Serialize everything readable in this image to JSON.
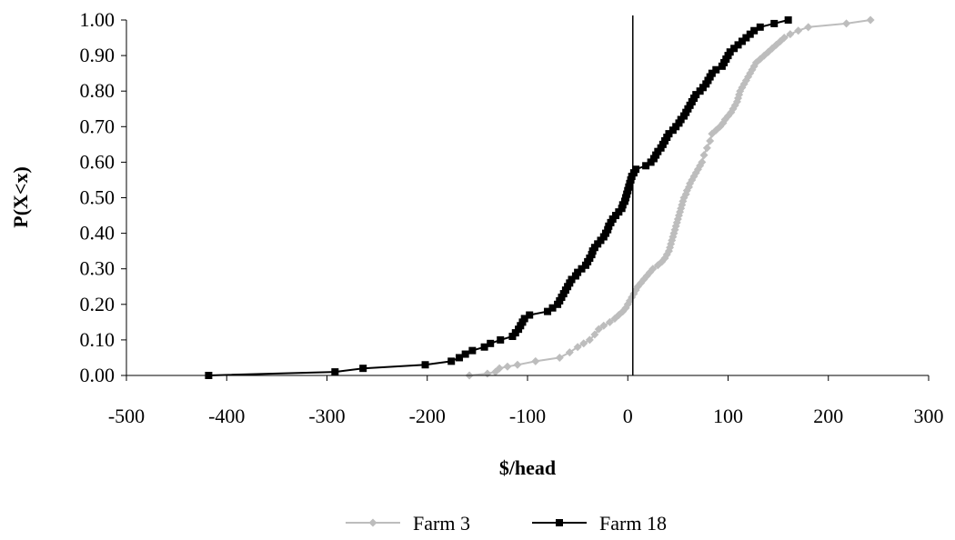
{
  "chart_data": {
    "type": "line",
    "title": "",
    "xlabel": "$/head",
    "ylabel": "P(X<x)",
    "xlim": [
      -500,
      300
    ],
    "ylim": [
      0,
      1
    ],
    "x_ticks": [
      "-500",
      "-400",
      "-300",
      "-200",
      "-100",
      "0",
      "100",
      "200",
      "300"
    ],
    "y_ticks": [
      "0.00",
      "0.10",
      "0.20",
      "0.30",
      "0.40",
      "0.50",
      "0.60",
      "0.70",
      "0.80",
      "0.90",
      "1.00"
    ],
    "reference_line_x": 5,
    "grid": false,
    "legend_position": "bottom",
    "series": [
      {
        "name": "Farm 3",
        "color": "#bdbdbd",
        "marker": "diamond",
        "points": [
          [
            -158,
            0.0
          ],
          [
            -140,
            0.005
          ],
          [
            -132,
            0.01
          ],
          [
            -128,
            0.02
          ],
          [
            -120,
            0.025
          ],
          [
            -110,
            0.03
          ],
          [
            -92,
            0.04
          ],
          [
            -68,
            0.05
          ],
          [
            -58,
            0.065
          ],
          [
            -50,
            0.08
          ],
          [
            -44,
            0.09
          ],
          [
            -38,
            0.1
          ],
          [
            -33,
            0.115
          ],
          [
            -29,
            0.13
          ],
          [
            -24,
            0.14
          ],
          [
            -18,
            0.15
          ],
          [
            -13,
            0.16
          ],
          [
            -9,
            0.17
          ],
          [
            -5,
            0.18
          ],
          [
            -2,
            0.19
          ],
          [
            0,
            0.2
          ],
          [
            2,
            0.21
          ],
          [
            4,
            0.22
          ],
          [
            6,
            0.23
          ],
          [
            8,
            0.24
          ],
          [
            10,
            0.25
          ],
          [
            13,
            0.26
          ],
          [
            16,
            0.27
          ],
          [
            19,
            0.28
          ],
          [
            22,
            0.29
          ],
          [
            25,
            0.3
          ],
          [
            30,
            0.31
          ],
          [
            34,
            0.32
          ],
          [
            37,
            0.33
          ],
          [
            39,
            0.34
          ],
          [
            41,
            0.35
          ],
          [
            42,
            0.36
          ],
          [
            43,
            0.37
          ],
          [
            44,
            0.38
          ],
          [
            45,
            0.39
          ],
          [
            46,
            0.4
          ],
          [
            47,
            0.41
          ],
          [
            48,
            0.42
          ],
          [
            49,
            0.43
          ],
          [
            50,
            0.44
          ],
          [
            51,
            0.45
          ],
          [
            52,
            0.46
          ],
          [
            53,
            0.47
          ],
          [
            54,
            0.48
          ],
          [
            55,
            0.49
          ],
          [
            56,
            0.5
          ],
          [
            58,
            0.51
          ],
          [
            59,
            0.52
          ],
          [
            61,
            0.53
          ],
          [
            62,
            0.54
          ],
          [
            64,
            0.55
          ],
          [
            66,
            0.56
          ],
          [
            68,
            0.57
          ],
          [
            70,
            0.58
          ],
          [
            72,
            0.59
          ],
          [
            74,
            0.6
          ],
          [
            76,
            0.62
          ],
          [
            79,
            0.64
          ],
          [
            82,
            0.66
          ],
          [
            84,
            0.68
          ],
          [
            88,
            0.69
          ],
          [
            92,
            0.7
          ],
          [
            95,
            0.71
          ],
          [
            97,
            0.72
          ],
          [
            100,
            0.73
          ],
          [
            103,
            0.74
          ],
          [
            105,
            0.75
          ],
          [
            107,
            0.76
          ],
          [
            109,
            0.77
          ],
          [
            110,
            0.78
          ],
          [
            111,
            0.79
          ],
          [
            112,
            0.8
          ],
          [
            114,
            0.81
          ],
          [
            116,
            0.82
          ],
          [
            118,
            0.83
          ],
          [
            120,
            0.84
          ],
          [
            122,
            0.85
          ],
          [
            124,
            0.86
          ],
          [
            126,
            0.87
          ],
          [
            128,
            0.88
          ],
          [
            132,
            0.89
          ],
          [
            136,
            0.9
          ],
          [
            140,
            0.91
          ],
          [
            144,
            0.92
          ],
          [
            148,
            0.93
          ],
          [
            152,
            0.94
          ],
          [
            156,
            0.95
          ],
          [
            162,
            0.96
          ],
          [
            170,
            0.97
          ],
          [
            180,
            0.98
          ],
          [
            218,
            0.99
          ],
          [
            242,
            1.0
          ]
        ]
      },
      {
        "name": "Farm 18",
        "color": "#000000",
        "marker": "square",
        "points": [
          [
            -418,
            0.0
          ],
          [
            -292,
            0.01
          ],
          [
            -264,
            0.02
          ],
          [
            -202,
            0.03
          ],
          [
            -176,
            0.04
          ],
          [
            -168,
            0.05
          ],
          [
            -162,
            0.06
          ],
          [
            -155,
            0.07
          ],
          [
            -143,
            0.08
          ],
          [
            -137,
            0.09
          ],
          [
            -127,
            0.1
          ],
          [
            -115,
            0.11
          ],
          [
            -112,
            0.12
          ],
          [
            -109,
            0.13
          ],
          [
            -107,
            0.14
          ],
          [
            -105,
            0.15
          ],
          [
            -103,
            0.16
          ],
          [
            -98,
            0.17
          ],
          [
            -80,
            0.18
          ],
          [
            -75,
            0.19
          ],
          [
            -70,
            0.2
          ],
          [
            -68,
            0.21
          ],
          [
            -66,
            0.22
          ],
          [
            -64,
            0.23
          ],
          [
            -62,
            0.24
          ],
          [
            -60,
            0.25
          ],
          [
            -58,
            0.26
          ],
          [
            -56,
            0.27
          ],
          [
            -52,
            0.28
          ],
          [
            -50,
            0.29
          ],
          [
            -46,
            0.3
          ],
          [
            -42,
            0.31
          ],
          [
            -40,
            0.32
          ],
          [
            -38,
            0.33
          ],
          [
            -36,
            0.34
          ],
          [
            -35,
            0.35
          ],
          [
            -33,
            0.36
          ],
          [
            -30,
            0.37
          ],
          [
            -27,
            0.38
          ],
          [
            -24,
            0.39
          ],
          [
            -22,
            0.4
          ],
          [
            -20,
            0.41
          ],
          [
            -19,
            0.42
          ],
          [
            -17,
            0.43
          ],
          [
            -15,
            0.44
          ],
          [
            -12,
            0.45
          ],
          [
            -9,
            0.46
          ],
          [
            -6,
            0.47
          ],
          [
            -5,
            0.48
          ],
          [
            -3,
            0.49
          ],
          [
            -2,
            0.5
          ],
          [
            -1,
            0.51
          ],
          [
            0,
            0.52
          ],
          [
            1,
            0.53
          ],
          [
            2,
            0.54
          ],
          [
            3,
            0.55
          ],
          [
            4,
            0.56
          ],
          [
            6,
            0.57
          ],
          [
            8,
            0.58
          ],
          [
            18,
            0.59
          ],
          [
            23,
            0.6
          ],
          [
            26,
            0.61
          ],
          [
            28,
            0.62
          ],
          [
            30,
            0.63
          ],
          [
            33,
            0.64
          ],
          [
            35,
            0.65
          ],
          [
            37,
            0.66
          ],
          [
            39,
            0.67
          ],
          [
            41,
            0.68
          ],
          [
            45,
            0.69
          ],
          [
            48,
            0.7
          ],
          [
            51,
            0.71
          ],
          [
            53,
            0.72
          ],
          [
            56,
            0.73
          ],
          [
            58,
            0.74
          ],
          [
            60,
            0.75
          ],
          [
            62,
            0.76
          ],
          [
            64,
            0.77
          ],
          [
            66,
            0.78
          ],
          [
            68,
            0.79
          ],
          [
            72,
            0.8
          ],
          [
            75,
            0.81
          ],
          [
            78,
            0.82
          ],
          [
            80,
            0.83
          ],
          [
            82,
            0.84
          ],
          [
            84,
            0.85
          ],
          [
            88,
            0.86
          ],
          [
            94,
            0.87
          ],
          [
            96,
            0.88
          ],
          [
            98,
            0.89
          ],
          [
            100,
            0.9
          ],
          [
            102,
            0.91
          ],
          [
            106,
            0.92
          ],
          [
            110,
            0.93
          ],
          [
            114,
            0.94
          ],
          [
            118,
            0.95
          ],
          [
            122,
            0.96
          ],
          [
            126,
            0.97
          ],
          [
            132,
            0.98
          ],
          [
            146,
            0.99
          ],
          [
            160,
            1.0
          ]
        ]
      }
    ]
  }
}
